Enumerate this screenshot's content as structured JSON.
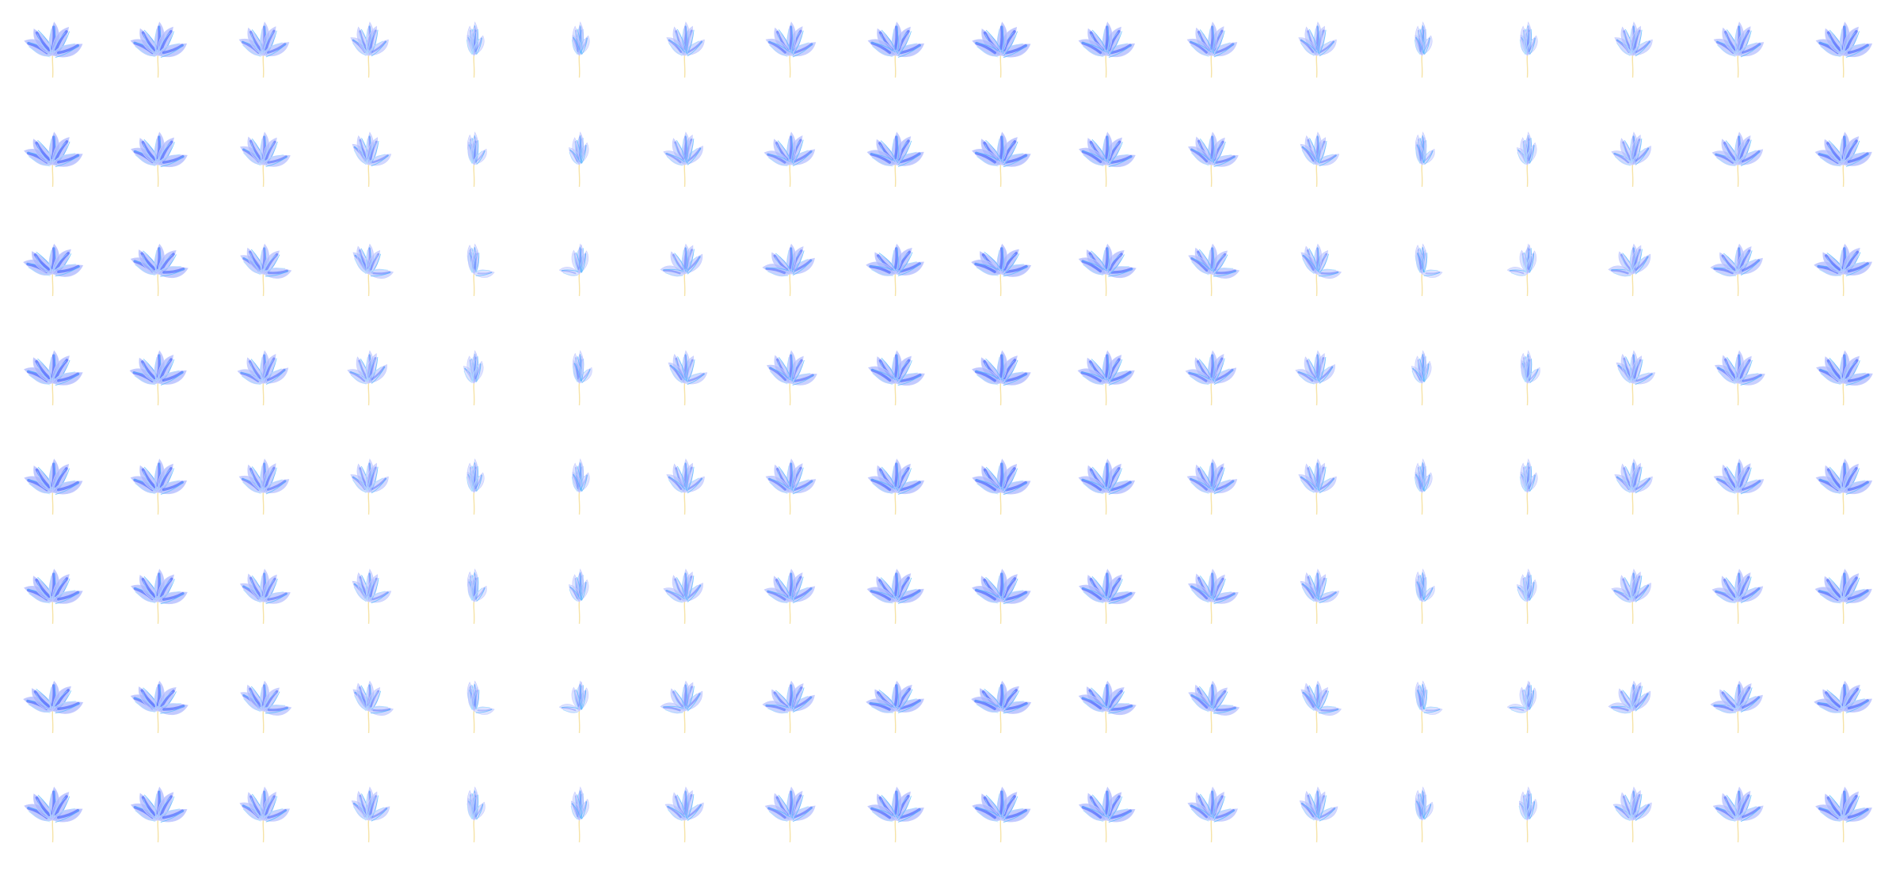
{
  "sheet": {
    "rows": 8,
    "columns": 18,
    "frame_count": 144,
    "colors": {
      "background": "#ffffff",
      "leaf_dense": "#3b5bff",
      "leaf_fill": "#a9b4ff",
      "leaf_light": "#c8ceff",
      "vein": "#4fb8ff",
      "vein_light": "#9fe3ff",
      "stem": "#f6e3a6"
    },
    "row_views": [
      {
        "row": 1,
        "elevation": 0,
        "description_token": "front-level"
      },
      {
        "row": 2,
        "elevation": 20,
        "description_token": "front-high"
      },
      {
        "row": 3,
        "elevation": 40,
        "description_token": "top-tilted"
      },
      {
        "row": 4,
        "elevation": -20,
        "description_token": "front-low"
      },
      {
        "row": 5,
        "elevation": 0,
        "description_token": "front-level-b"
      },
      {
        "row": 6,
        "elevation": 20,
        "description_token": "front-high-b"
      },
      {
        "row": 7,
        "elevation": 40,
        "description_token": "top-tilted-b"
      },
      {
        "row": 8,
        "elevation": 10,
        "description_token": "front-mid"
      }
    ],
    "azimuth_steps": [
      0,
      20,
      40,
      60,
      80,
      100,
      120,
      140,
      160,
      180,
      200,
      220,
      240,
      260,
      280,
      300,
      320,
      340
    ]
  }
}
